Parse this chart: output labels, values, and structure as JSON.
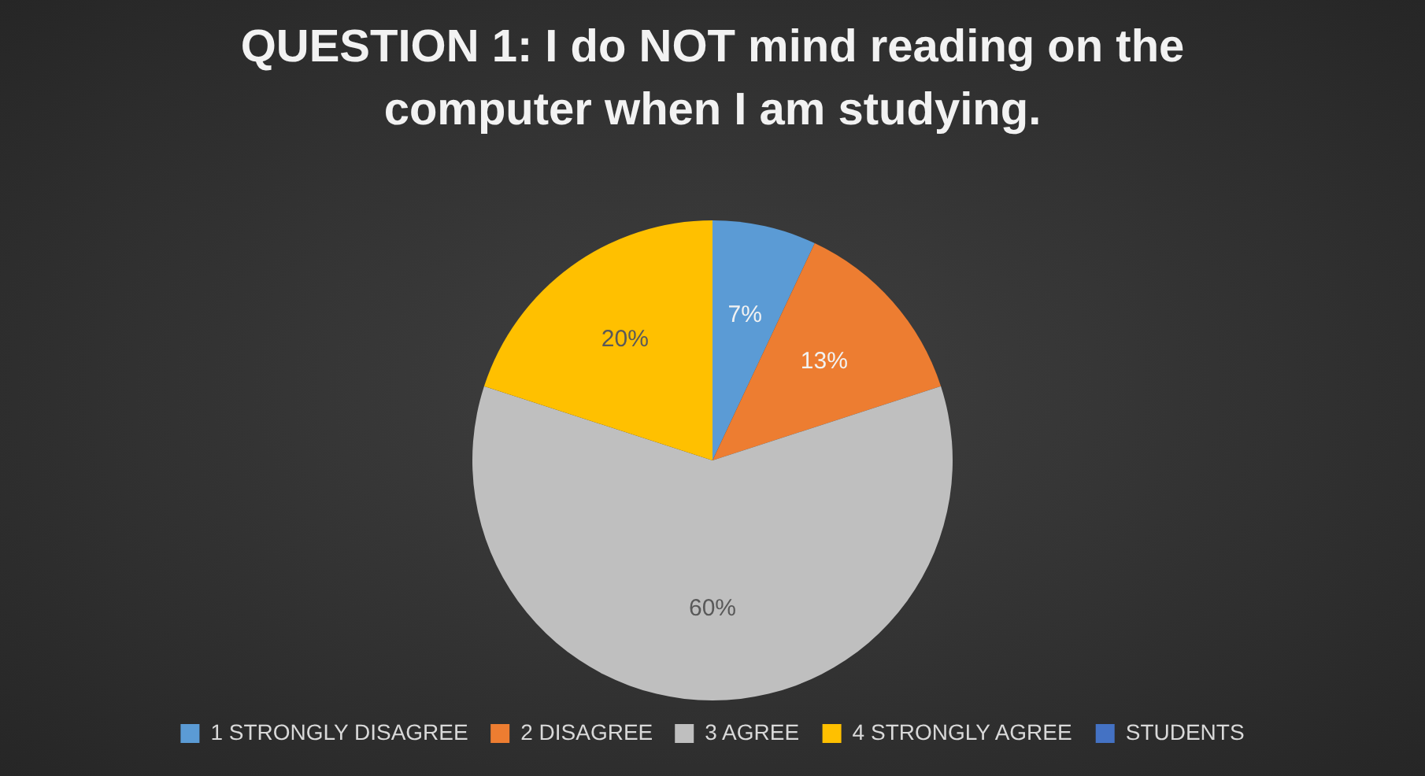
{
  "chart_data": {
    "type": "pie",
    "title": "QUESTION 1: I do NOT mind reading on the computer when I am studying.",
    "categories": [
      "1 STRONGLY DISAGREE",
      "2 DISAGREE",
      "3 AGREE",
      "4 STRONGLY AGREE",
      "STUDENTS"
    ],
    "values": [
      7,
      13,
      60,
      20,
      0
    ],
    "colors": [
      "#5b9bd5",
      "#ed7d31",
      "#bfbfbf",
      "#ffc000",
      "#4472c4"
    ],
    "value_labels": [
      "7%",
      "13%",
      "60%",
      "20%",
      null
    ],
    "legend": "bottom"
  }
}
